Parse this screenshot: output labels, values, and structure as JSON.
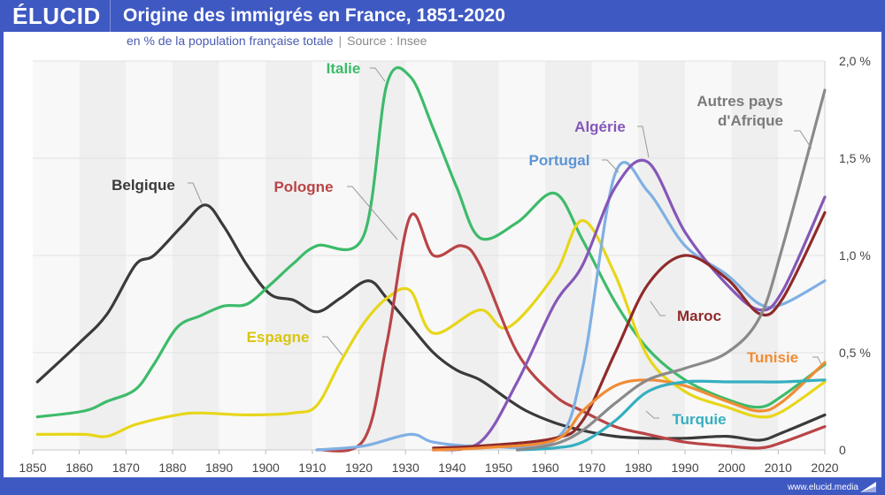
{
  "header": {
    "logo": "ÉLUCID",
    "title": "Origine des immigrés en France, 1851-2020",
    "subtitle": "en % de la population française totale",
    "source": "Source : Insee"
  },
  "footer": {
    "url": "www.elucid.media"
  },
  "colors": {
    "brand": "#3f59c3"
  },
  "chart_data": {
    "type": "line",
    "title": "Origine des immigrés en France, 1851-2020",
    "subtitle": "en % de la population française totale",
    "xlabel": "",
    "ylabel": "",
    "xlim": [
      1850,
      2020
    ],
    "ylim": [
      0,
      2.0
    ],
    "x_ticks": [
      "1850",
      "1860",
      "1870",
      "1880",
      "1890",
      "1900",
      "1910",
      "1920",
      "1930",
      "1940",
      "1950",
      "1960",
      "1970",
      "1980",
      "1990",
      "2000",
      "2010",
      "2020"
    ],
    "y_ticks": [
      {
        "v": 0,
        "label": "0"
      },
      {
        "v": 0.5,
        "label": "0,5 %"
      },
      {
        "v": 1.0,
        "label": "1,0 %"
      },
      {
        "v": 1.5,
        "label": "1,5 %"
      },
      {
        "v": 2.0,
        "label": "2,0 %"
      }
    ],
    "grid": true,
    "legend": "inline labels",
    "series": [
      {
        "name": "Belgique",
        "color": "#3a3a3a",
        "label_color": "#3a3a3a",
        "x": [
          1851,
          1860,
          1866,
          1872,
          1876,
          1882,
          1887,
          1891,
          1896,
          1901,
          1906,
          1911,
          1916,
          1922,
          1926,
          1931,
          1936,
          1941,
          1946,
          1952,
          1956,
          1962,
          1968,
          1975,
          1982,
          1990,
          1999,
          2006,
          2011,
          2020
        ],
        "y": [
          0.35,
          0.55,
          0.7,
          0.95,
          1.0,
          1.15,
          1.26,
          1.15,
          0.95,
          0.8,
          0.77,
          0.71,
          0.78,
          0.87,
          0.78,
          0.64,
          0.5,
          0.41,
          0.36,
          0.26,
          0.2,
          0.14,
          0.1,
          0.07,
          0.06,
          0.06,
          0.07,
          0.05,
          0.09,
          0.18
        ]
      },
      {
        "name": "Italie",
        "color": "#3dbb6a",
        "label_color": "#3dbb6a",
        "x": [
          1851,
          1861,
          1866,
          1872,
          1876,
          1881,
          1886,
          1891,
          1896,
          1901,
          1906,
          1911,
          1921,
          1926,
          1931,
          1936,
          1941,
          1946,
          1954,
          1962,
          1968,
          1975,
          1982,
          1990,
          1999,
          2006,
          2011,
          2020
        ],
        "y": [
          0.17,
          0.2,
          0.25,
          0.31,
          0.44,
          0.63,
          0.69,
          0.74,
          0.75,
          0.85,
          0.96,
          1.05,
          1.1,
          1.88,
          1.92,
          1.65,
          1.35,
          1.09,
          1.17,
          1.32,
          1.08,
          0.76,
          0.52,
          0.36,
          0.26,
          0.22,
          0.28,
          0.44
        ]
      },
      {
        "name": "Espagne",
        "color": "#e7d619",
        "label_color": "#d9c50f",
        "x": [
          1851,
          1861,
          1866,
          1872,
          1881,
          1886,
          1896,
          1906,
          1911,
          1916,
          1921,
          1926,
          1931,
          1936,
          1946,
          1952,
          1962,
          1968,
          1975,
          1982,
          1990,
          1999,
          2006,
          2011,
          2020
        ],
        "y": [
          0.08,
          0.08,
          0.07,
          0.13,
          0.18,
          0.19,
          0.18,
          0.19,
          0.23,
          0.45,
          0.65,
          0.78,
          0.82,
          0.6,
          0.72,
          0.63,
          0.9,
          1.18,
          0.9,
          0.48,
          0.3,
          0.22,
          0.17,
          0.2,
          0.35
        ]
      },
      {
        "name": "Pologne",
        "color": "#b94446",
        "label_color": "#b94446",
        "x": [
          1911,
          1921,
          1926,
          1931,
          1936,
          1942,
          1946,
          1954,
          1962,
          1968,
          1975,
          1982,
          1990,
          1999,
          2006,
          2011,
          2020
        ],
        "y": [
          0.0,
          0.05,
          0.55,
          1.2,
          1.0,
          1.05,
          0.95,
          0.5,
          0.28,
          0.2,
          0.12,
          0.08,
          0.04,
          0.02,
          0.01,
          0.04,
          0.12
        ]
      },
      {
        "name": "Portugal",
        "color": "#7fb0e3",
        "label_color": "#5b95d6",
        "x": [
          1911,
          1921,
          1931,
          1936,
          1946,
          1962,
          1968,
          1975,
          1982,
          1990,
          1999,
          2006,
          2011,
          2020
        ],
        "y": [
          0.0,
          0.02,
          0.08,
          0.04,
          0.02,
          0.05,
          0.42,
          1.42,
          1.33,
          1.05,
          0.9,
          0.75,
          0.75,
          0.87
        ]
      },
      {
        "name": "Algérie",
        "color": "#8557b8",
        "label_color": "#8557b8",
        "x": [
          1936,
          1946,
          1954,
          1962,
          1968,
          1975,
          1982,
          1990,
          1999,
          2006,
          2011,
          2020
        ],
        "y": [
          0.0,
          0.04,
          0.35,
          0.75,
          0.95,
          1.35,
          1.48,
          1.12,
          0.85,
          0.72,
          0.82,
          1.3
        ]
      },
      {
        "name": "Maroc",
        "color": "#8f2a2a",
        "label_color": "#8f2a2a",
        "x": [
          1936,
          1946,
          1962,
          1968,
          1975,
          1982,
          1990,
          1999,
          2006,
          2011,
          2020
        ],
        "y": [
          0.01,
          0.02,
          0.06,
          0.15,
          0.5,
          0.85,
          1.0,
          0.88,
          0.7,
          0.78,
          1.22
        ]
      },
      {
        "name": "Tunisie",
        "color": "#f08c35",
        "label_color": "#f08c35",
        "x": [
          1936,
          1946,
          1962,
          1968,
          1975,
          1982,
          1990,
          1999,
          2006,
          2011,
          2020
        ],
        "y": [
          0.0,
          0.01,
          0.05,
          0.2,
          0.33,
          0.36,
          0.33,
          0.25,
          0.2,
          0.25,
          0.45
        ]
      },
      {
        "name": "Turquie",
        "color": "#34afc0",
        "label_color": "#34afc0",
        "x": [
          1954,
          1962,
          1968,
          1975,
          1982,
          1990,
          1999,
          2006,
          2011,
          2020
        ],
        "y": [
          0.0,
          0.01,
          0.04,
          0.15,
          0.3,
          0.35,
          0.35,
          0.35,
          0.35,
          0.36
        ]
      },
      {
        "name": "Autres pays d'Afrique",
        "color": "#8a8a8a",
        "label_color": "#7a7a7a",
        "x": [
          1954,
          1962,
          1968,
          1975,
          1982,
          1990,
          1999,
          2006,
          2011,
          2020
        ],
        "y": [
          0.0,
          0.03,
          0.1,
          0.24,
          0.36,
          0.42,
          0.5,
          0.68,
          1.05,
          1.85
        ]
      }
    ],
    "annotations": [
      {
        "series": "Belgique",
        "text": [
          "Belgique"
        ]
      },
      {
        "series": "Italie",
        "text": [
          "Italie"
        ]
      },
      {
        "series": "Pologne",
        "text": [
          "Pologne"
        ]
      },
      {
        "series": "Espagne",
        "text": [
          "Espagne"
        ]
      },
      {
        "series": "Portugal",
        "text": [
          "Portugal"
        ]
      },
      {
        "series": "Algérie",
        "text": [
          "Algérie"
        ]
      },
      {
        "series": "Autres pays d'Afrique",
        "text": [
          "Autres pays",
          "d'Afrique"
        ]
      },
      {
        "series": "Maroc",
        "text": [
          "Maroc"
        ]
      },
      {
        "series": "Tunisie",
        "text": [
          "Tunisie"
        ]
      },
      {
        "series": "Turquie",
        "text": [
          "Turquie"
        ]
      }
    ]
  }
}
